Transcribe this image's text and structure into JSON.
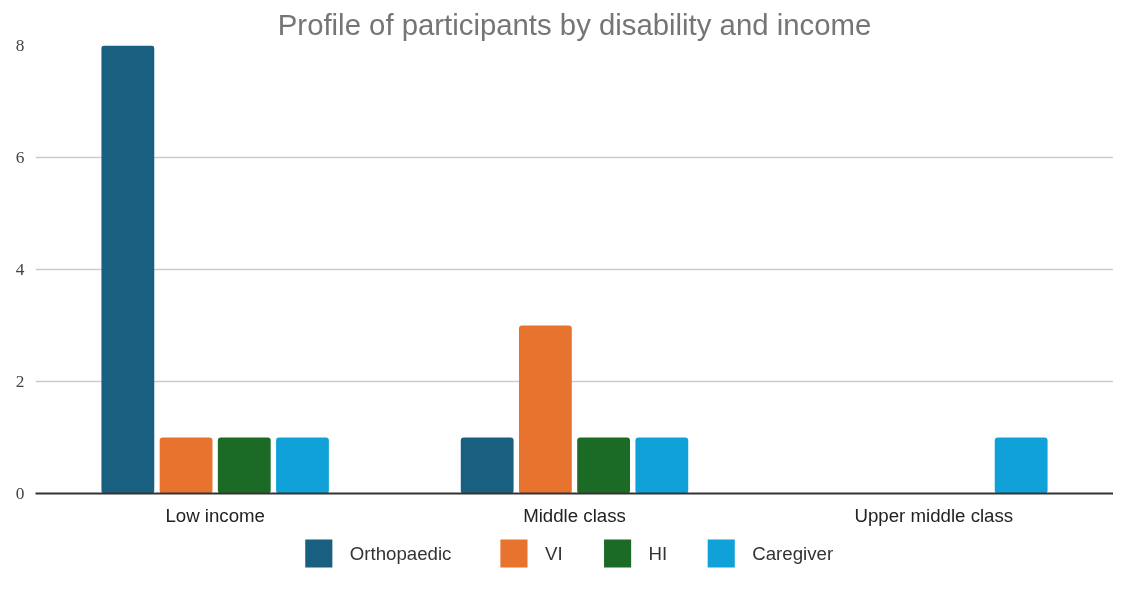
{
  "chart_data": {
    "type": "bar",
    "title": "Profile of participants by disability and income",
    "categories": [
      "Low income",
      "Middle class",
      "Upper middle class"
    ],
    "series": [
      {
        "name": "Orthopaedic",
        "color": "#185f80",
        "values": [
          8,
          1,
          0
        ]
      },
      {
        "name": "VI",
        "color": "#e8732f",
        "values": [
          1,
          3,
          0
        ]
      },
      {
        "name": "HI",
        "color": "#1b6b26",
        "values": [
          1,
          1,
          0
        ]
      },
      {
        "name": "Caregiver",
        "color": "#10a1d8",
        "values": [
          1,
          1,
          1
        ]
      }
    ],
    "ylim": [
      0,
      8
    ],
    "yticks": [
      0,
      2,
      4,
      6,
      8
    ],
    "grid": "y",
    "legend": "bottom"
  }
}
